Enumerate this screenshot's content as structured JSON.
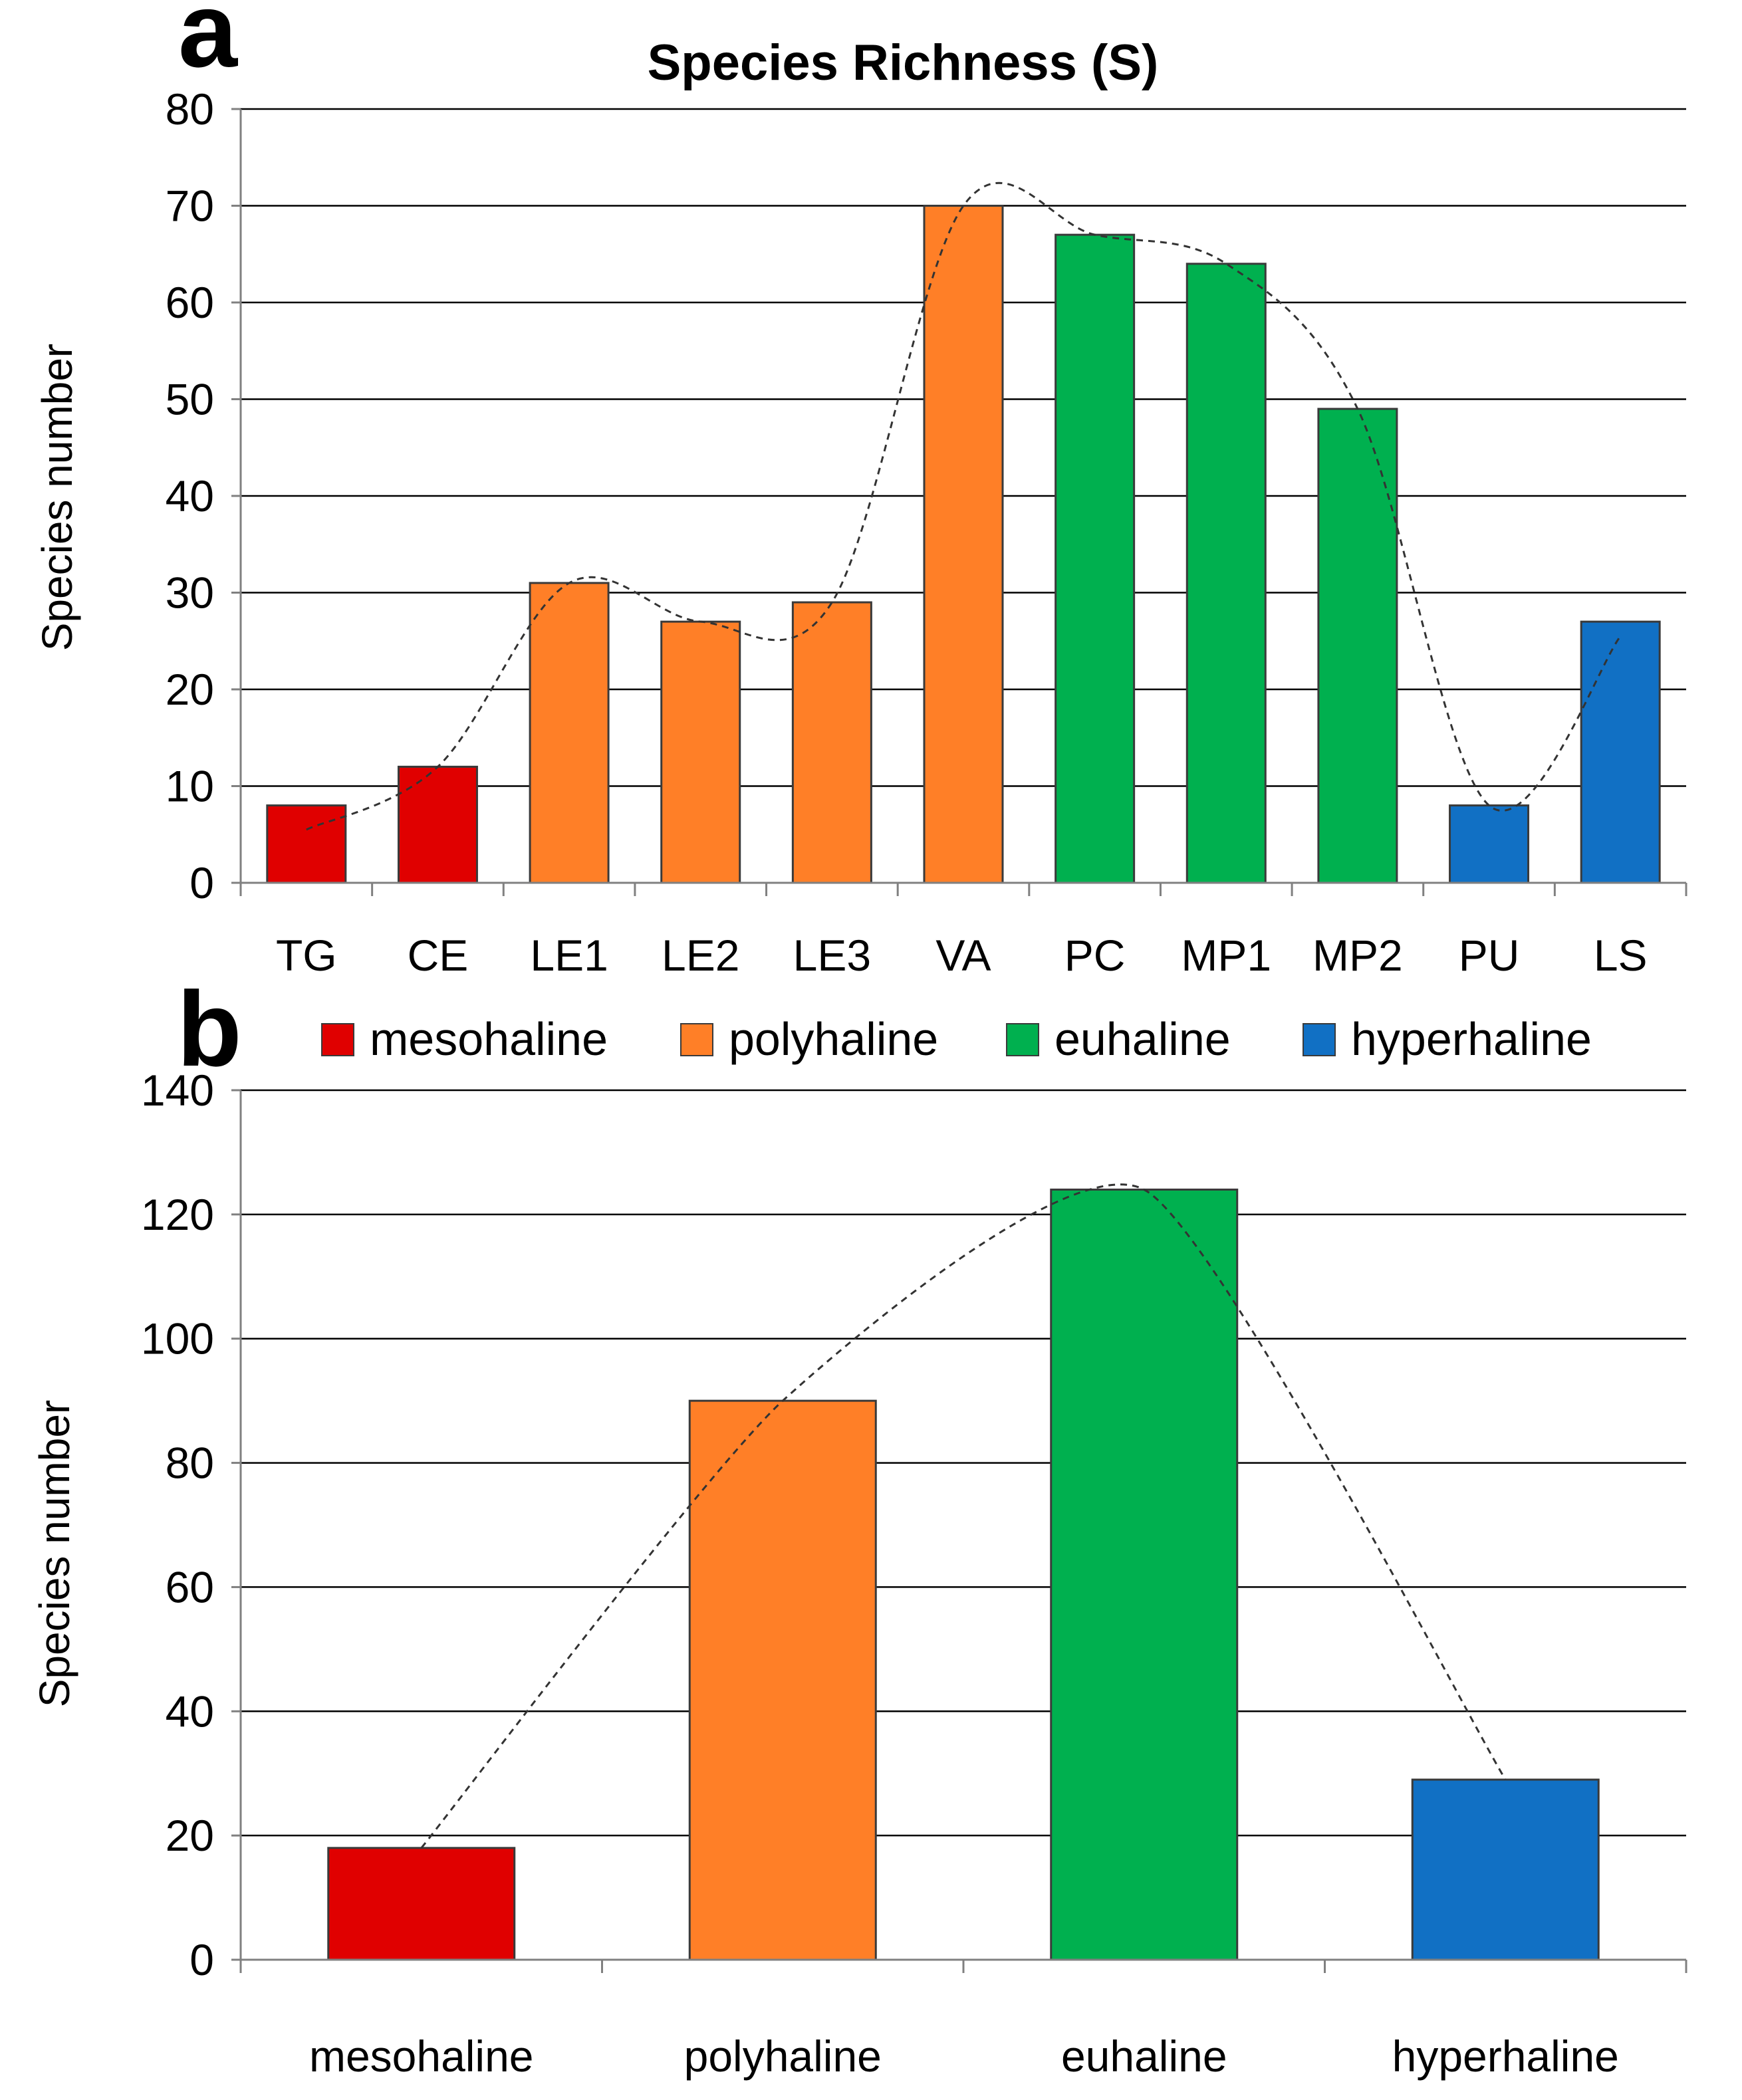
{
  "panel_labels": [
    "a",
    "b"
  ],
  "chart_data": [
    {
      "type": "bar",
      "panel": "a",
      "title": "Species Richness (S)",
      "xlabel": "",
      "ylabel": "Species number",
      "ylim": [
        0,
        80
      ],
      "yticks": [
        0,
        10,
        20,
        30,
        40,
        50,
        60,
        70,
        80
      ],
      "grid": true,
      "categories": [
        "TG",
        "CE",
        "LE1",
        "LE2",
        "LE3",
        "VA",
        "PC",
        "MP1",
        "MP2",
        "PU",
        "LS"
      ],
      "values": [
        8,
        12,
        31,
        27,
        29,
        70,
        67,
        64,
        49,
        8,
        27
      ],
      "groups": [
        "mesohaline",
        "mesohaline",
        "polyhaline",
        "polyhaline",
        "polyhaline",
        "polyhaline",
        "euhaline",
        "euhaline",
        "euhaline",
        "hyperhaline",
        "hyperhaline"
      ],
      "trendline": {
        "style": "dashed",
        "kind": "polynomial"
      }
    },
    {
      "type": "bar",
      "panel": "b",
      "title": "",
      "xlabel": "",
      "ylabel": "Species number",
      "ylim": [
        0,
        140
      ],
      "yticks": [
        0,
        20,
        40,
        60,
        80,
        100,
        120,
        140
      ],
      "grid": true,
      "categories": [
        "mesohaline",
        "polyhaline",
        "euhaline",
        "hyperhaline"
      ],
      "values": [
        18,
        90,
        124,
        29
      ],
      "groups": [
        "mesohaline",
        "polyhaline",
        "euhaline",
        "hyperhaline"
      ],
      "trendline": {
        "style": "dashed",
        "kind": "polynomial"
      }
    }
  ],
  "legend": {
    "placement": "between panels",
    "items": [
      {
        "key": "mesohaline",
        "label": "mesohaline",
        "color": "#e00000"
      },
      {
        "key": "polyhaline",
        "label": "polyhaline",
        "color": "#ff7f27"
      },
      {
        "key": "euhaline",
        "label": "euhaline",
        "color": "#00b04f"
      },
      {
        "key": "hyperhaline",
        "label": "hyperhaline",
        "color": "#1170c4"
      }
    ]
  }
}
